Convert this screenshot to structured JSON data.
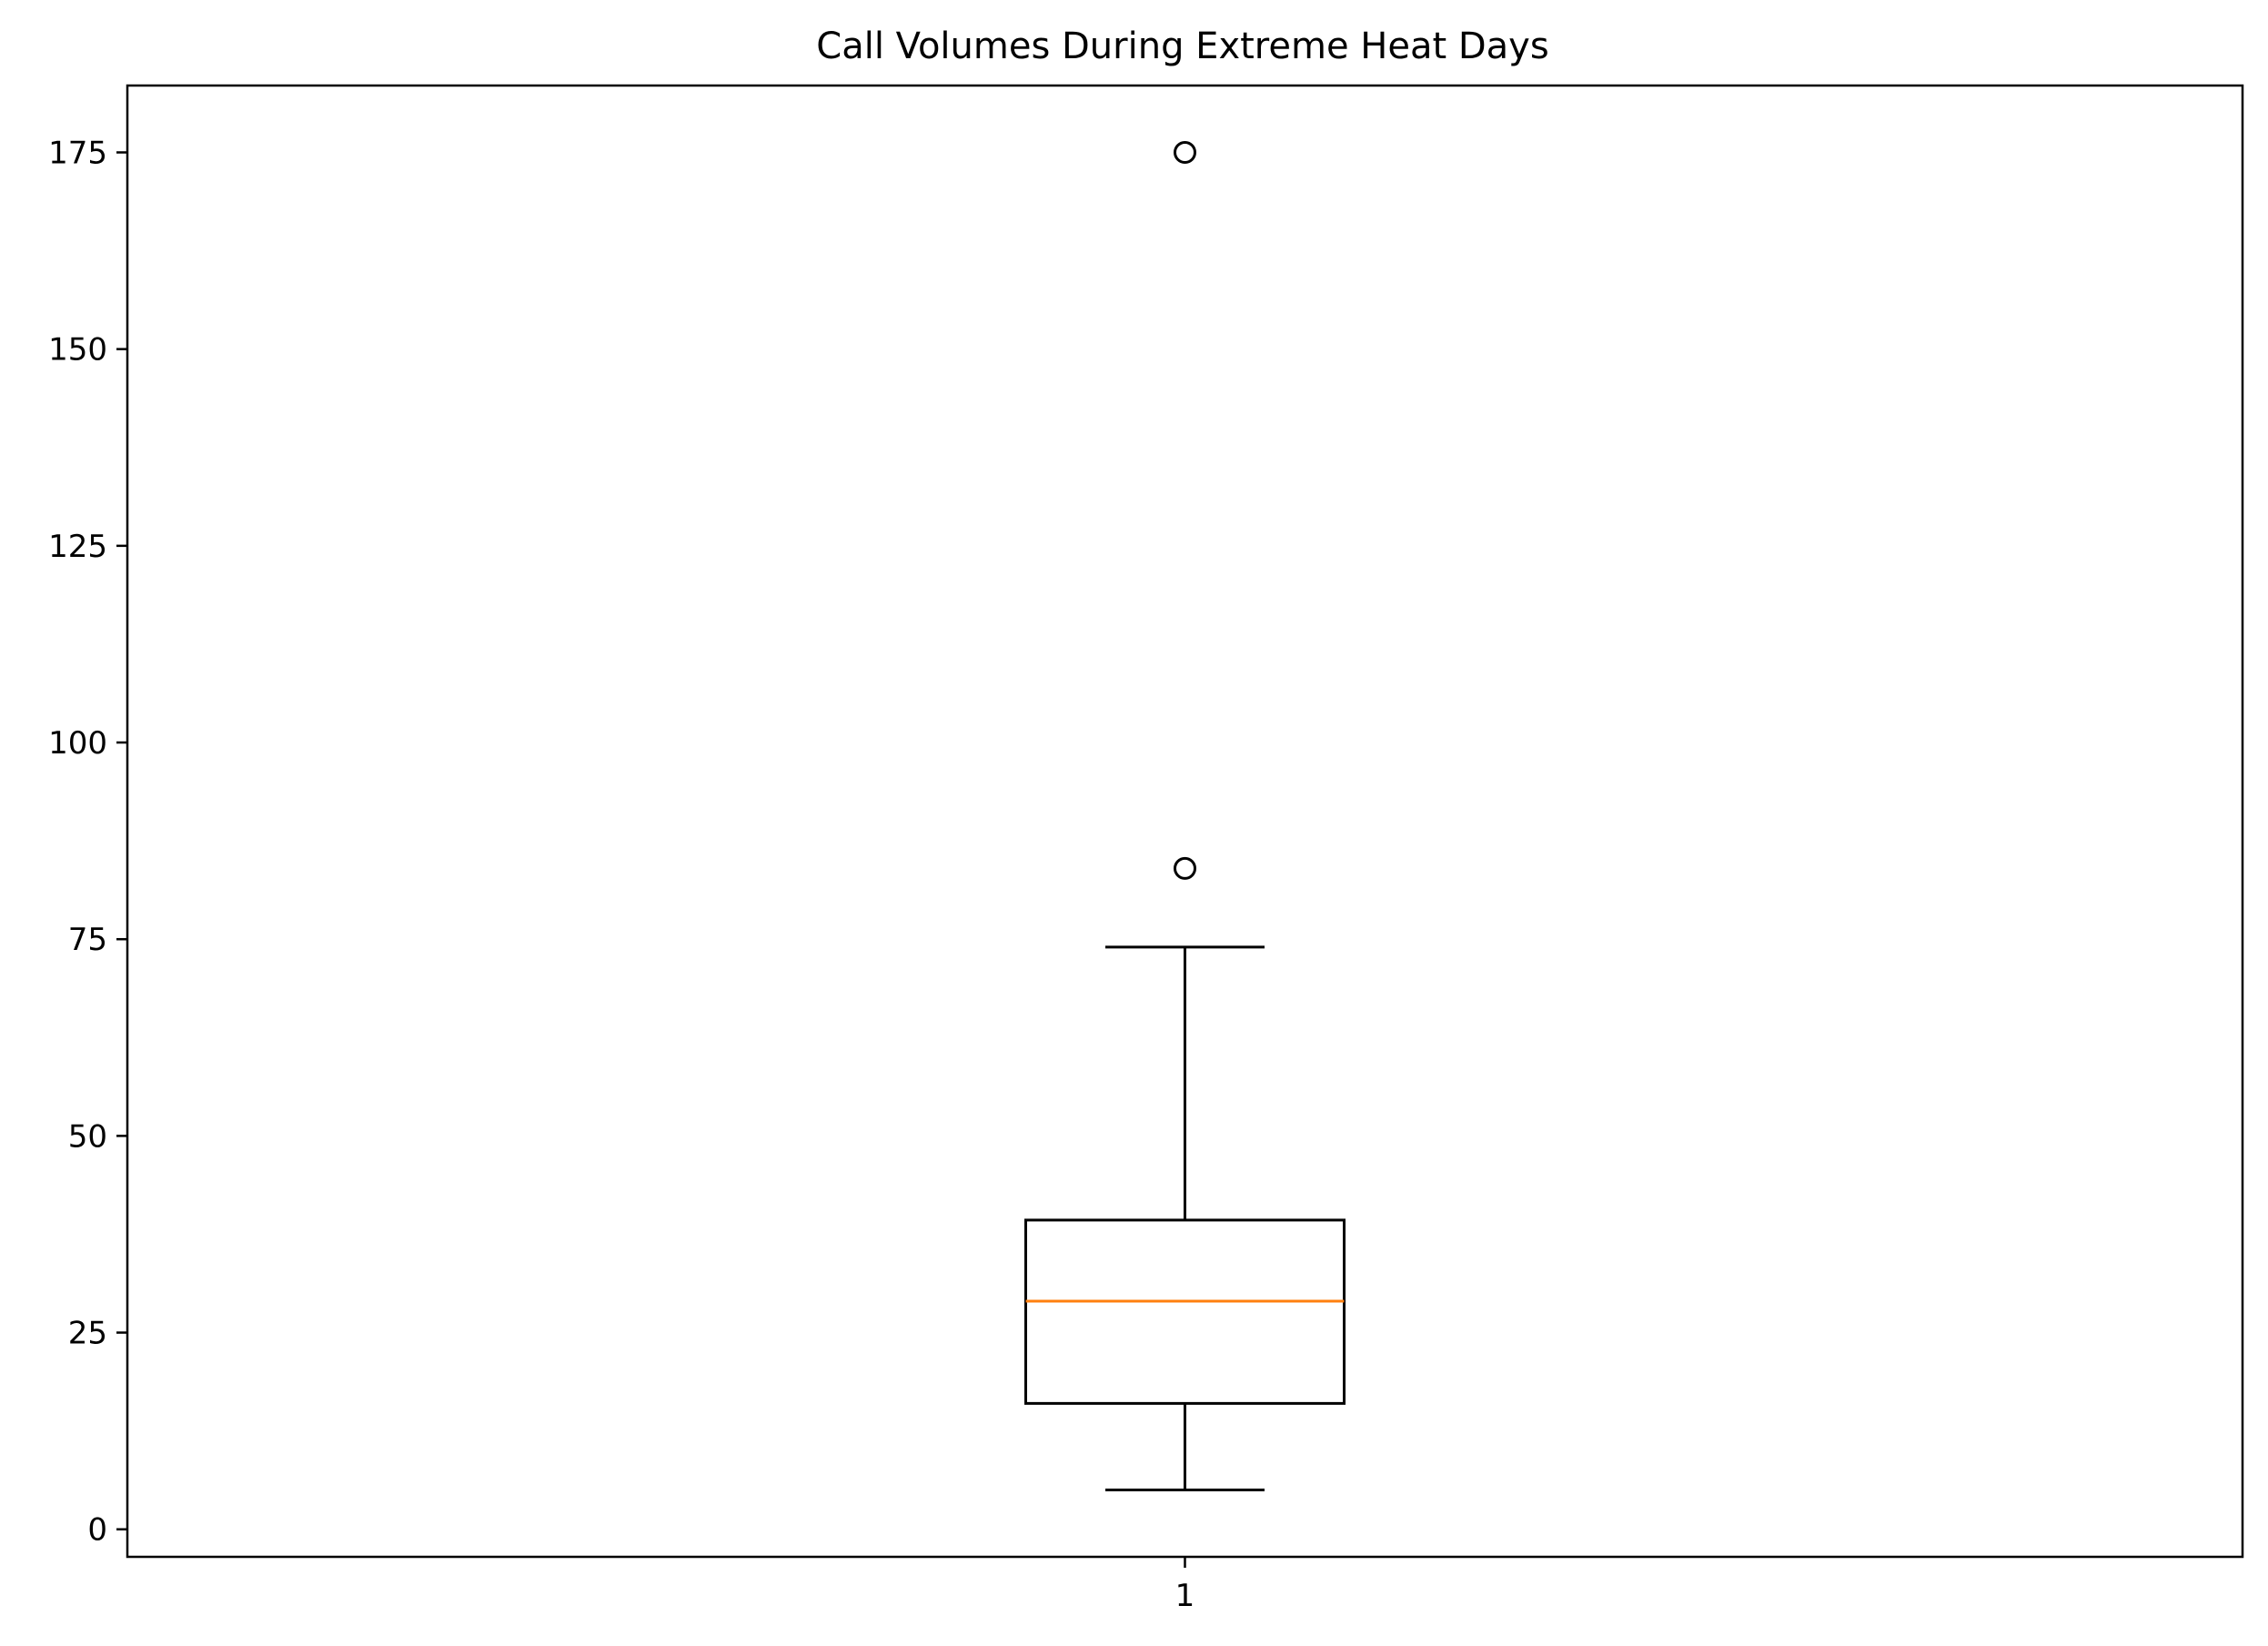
{
  "chart_data": {
    "type": "box",
    "title": "Call Volumes During Extreme Heat Days",
    "xlabel": "",
    "ylabel": "",
    "categories": [
      "1"
    ],
    "ylim": [
      -3.5,
      183.5
    ],
    "yticks": [
      0,
      25,
      50,
      75,
      100,
      125,
      150,
      175
    ],
    "grid": false,
    "boxes": [
      {
        "category": "1",
        "whisker_low": 5,
        "q1": 16,
        "median": 29,
        "q3": 39.3,
        "whisker_high": 74,
        "outliers": [
          84,
          175
        ]
      }
    ],
    "colors": {
      "box": "#000000",
      "median": "#ff7f0e",
      "background": "#ffffff"
    }
  }
}
